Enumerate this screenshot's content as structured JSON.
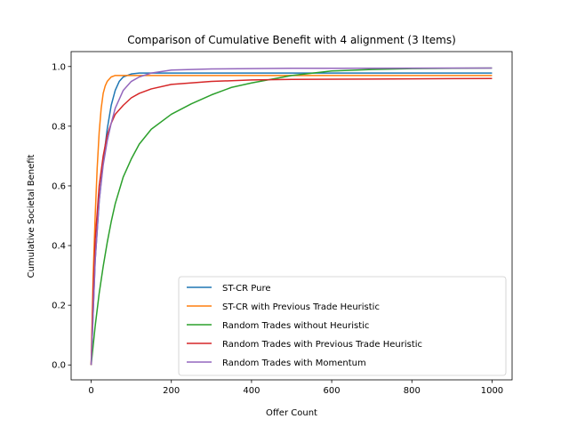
{
  "chart_data": {
    "type": "line",
    "title": "Comparison of Cumulative Benefit with 4 alignment (3 Items)",
    "xlabel": "Offer Count",
    "ylabel": "Cumulative Societal Benefit",
    "xlim": [
      -50,
      1050
    ],
    "ylim": [
      -0.05,
      1.05
    ],
    "xticks": [
      0,
      200,
      400,
      600,
      800,
      1000
    ],
    "yticks": [
      0.0,
      0.2,
      0.4,
      0.6,
      0.8,
      1.0
    ],
    "xtick_labels": [
      "0",
      "200",
      "400",
      "600",
      "800",
      "1000"
    ],
    "ytick_labels": [
      "0.0",
      "0.2",
      "0.4",
      "0.6",
      "0.8",
      "1.0"
    ],
    "legend_position": "lower-right",
    "grid": false,
    "series": [
      {
        "name": "ST-CR Pure",
        "color": "#1f77b4",
        "x": [
          0,
          10,
          20,
          30,
          40,
          50,
          60,
          70,
          80,
          100,
          120,
          150,
          200,
          300,
          500,
          1000
        ],
        "y": [
          0.0,
          0.35,
          0.55,
          0.68,
          0.79,
          0.87,
          0.92,
          0.95,
          0.965,
          0.975,
          0.978,
          0.978,
          0.978,
          0.978,
          0.978,
          0.978
        ]
      },
      {
        "name": "ST-CR with Previous Trade Heuristic",
        "color": "#ff7f0e",
        "x": [
          0,
          5,
          10,
          15,
          20,
          25,
          30,
          35,
          40,
          50,
          60,
          70,
          80,
          100,
          150,
          200,
          400,
          1000
        ],
        "y": [
          0.0,
          0.3,
          0.5,
          0.66,
          0.78,
          0.86,
          0.91,
          0.935,
          0.95,
          0.965,
          0.97,
          0.97,
          0.97,
          0.97,
          0.97,
          0.97,
          0.97,
          0.97
        ]
      },
      {
        "name": "Random Trades without Heuristic",
        "color": "#2ca02c",
        "x": [
          0,
          10,
          20,
          30,
          40,
          50,
          60,
          80,
          100,
          120,
          150,
          200,
          250,
          300,
          350,
          400,
          500,
          600,
          700,
          800,
          1000
        ],
        "y": [
          0.0,
          0.13,
          0.24,
          0.33,
          0.41,
          0.48,
          0.54,
          0.63,
          0.69,
          0.74,
          0.79,
          0.84,
          0.875,
          0.905,
          0.93,
          0.945,
          0.97,
          0.985,
          0.99,
          0.993,
          0.995
        ]
      },
      {
        "name": "Random Trades with Previous Trade Heuristic",
        "color": "#d62728",
        "x": [
          0,
          5,
          10,
          20,
          30,
          40,
          50,
          60,
          80,
          100,
          120,
          150,
          200,
          300,
          400,
          500,
          700,
          1000
        ],
        "y": [
          0.0,
          0.25,
          0.42,
          0.6,
          0.7,
          0.77,
          0.81,
          0.84,
          0.87,
          0.895,
          0.91,
          0.925,
          0.94,
          0.95,
          0.955,
          0.957,
          0.958,
          0.96
        ]
      },
      {
        "name": "Random Trades with Momentum",
        "color": "#9467bd",
        "x": [
          0,
          10,
          20,
          30,
          40,
          50,
          60,
          80,
          100,
          120,
          150,
          200,
          300,
          500,
          1000
        ],
        "y": [
          0.0,
          0.35,
          0.55,
          0.67,
          0.75,
          0.81,
          0.86,
          0.92,
          0.95,
          0.965,
          0.978,
          0.988,
          0.992,
          0.994,
          0.995
        ]
      }
    ]
  }
}
